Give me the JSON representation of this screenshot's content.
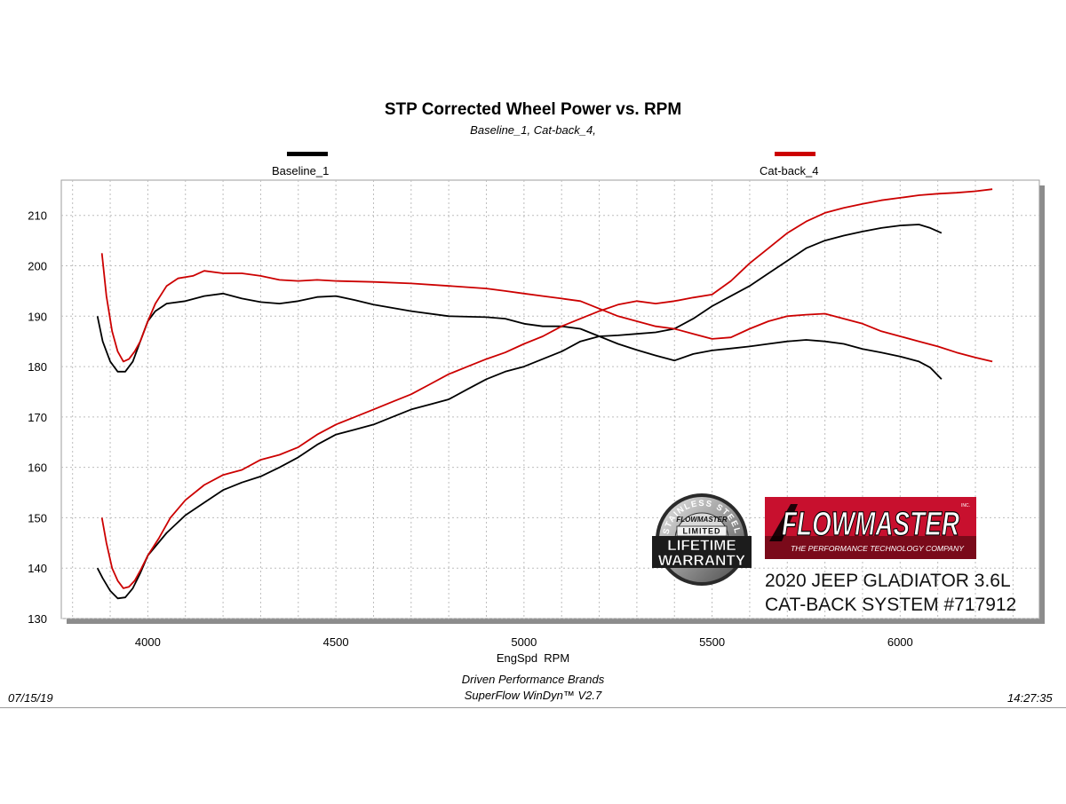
{
  "chart_data": {
    "type": "line",
    "title": "STP Corrected Wheel Power vs. RPM",
    "subtitle": "Baseline_1, Cat-back_4,",
    "xlabel": "EngSpd  RPM",
    "ylabel": "",
    "xlim": [
      3770,
      6370
    ],
    "ylim": [
      130,
      217
    ],
    "xticks": [
      4000,
      4500,
      5000,
      5500,
      6000
    ],
    "yticks": [
      130,
      140,
      150,
      160,
      170,
      180,
      190,
      200,
      210
    ],
    "grid": true,
    "legend": [
      {
        "name": "Baseline_1",
        "color": "#000000",
        "placement": "top-left"
      },
      {
        "name": "Cat-back_4",
        "color": "#cc0000",
        "placement": "top-right"
      }
    ],
    "series": [
      {
        "name": "Baseline_1",
        "metric": "upper",
        "color": "#000000",
        "points": [
          [
            3866,
            190
          ],
          [
            3880,
            185
          ],
          [
            3900,
            181
          ],
          [
            3920,
            179
          ],
          [
            3940,
            179
          ],
          [
            3960,
            181
          ],
          [
            3980,
            185
          ],
          [
            4000,
            189
          ],
          [
            4020,
            191
          ],
          [
            4050,
            192.5
          ],
          [
            4100,
            193
          ],
          [
            4150,
            194
          ],
          [
            4200,
            194.5
          ],
          [
            4250,
            193.5
          ],
          [
            4300,
            192.8
          ],
          [
            4350,
            192.5
          ],
          [
            4400,
            193
          ],
          [
            4450,
            193.8
          ],
          [
            4500,
            194
          ],
          [
            4550,
            193.2
          ],
          [
            4600,
            192.3
          ],
          [
            4700,
            191
          ],
          [
            4800,
            190
          ],
          [
            4900,
            189.8
          ],
          [
            4950,
            189.5
          ],
          [
            5000,
            188.5
          ],
          [
            5050,
            188
          ],
          [
            5100,
            188
          ],
          [
            5150,
            187.5
          ],
          [
            5200,
            186
          ],
          [
            5250,
            184.5
          ],
          [
            5300,
            183.3
          ],
          [
            5350,
            182.2
          ],
          [
            5400,
            181.2
          ],
          [
            5450,
            182.5
          ],
          [
            5500,
            183.2
          ],
          [
            5550,
            183.6
          ],
          [
            5600,
            184
          ],
          [
            5650,
            184.5
          ],
          [
            5700,
            185
          ],
          [
            5750,
            185.3
          ],
          [
            5800,
            185
          ],
          [
            5850,
            184.5
          ],
          [
            5900,
            183.5
          ],
          [
            5950,
            182.8
          ],
          [
            6000,
            182
          ],
          [
            6050,
            181
          ],
          [
            6080,
            179.8
          ],
          [
            6110,
            177.5
          ]
        ]
      },
      {
        "name": "Baseline_1",
        "metric": "lower",
        "color": "#000000",
        "points": [
          [
            3866,
            140
          ],
          [
            3880,
            138
          ],
          [
            3900,
            135.5
          ],
          [
            3920,
            134
          ],
          [
            3940,
            134.2
          ],
          [
            3960,
            136
          ],
          [
            3980,
            139
          ],
          [
            4000,
            142.5
          ],
          [
            4050,
            147
          ],
          [
            4100,
            150.5
          ],
          [
            4150,
            153
          ],
          [
            4200,
            155.5
          ],
          [
            4250,
            157
          ],
          [
            4300,
            158.2
          ],
          [
            4350,
            160
          ],
          [
            4400,
            162
          ],
          [
            4450,
            164.5
          ],
          [
            4500,
            166.5
          ],
          [
            4550,
            167.5
          ],
          [
            4600,
            168.5
          ],
          [
            4650,
            170
          ],
          [
            4700,
            171.5
          ],
          [
            4750,
            172.5
          ],
          [
            4800,
            173.5
          ],
          [
            4850,
            175.5
          ],
          [
            4900,
            177.5
          ],
          [
            4950,
            179
          ],
          [
            5000,
            180
          ],
          [
            5050,
            181.5
          ],
          [
            5100,
            183
          ],
          [
            5150,
            185
          ],
          [
            5200,
            186
          ],
          [
            5250,
            186.2
          ],
          [
            5300,
            186.5
          ],
          [
            5350,
            186.8
          ],
          [
            5400,
            187.5
          ],
          [
            5450,
            189.5
          ],
          [
            5500,
            192
          ],
          [
            5550,
            194
          ],
          [
            5600,
            196
          ],
          [
            5650,
            198.5
          ],
          [
            5700,
            201
          ],
          [
            5750,
            203.5
          ],
          [
            5800,
            205
          ],
          [
            5850,
            206
          ],
          [
            5900,
            206.8
          ],
          [
            5950,
            207.5
          ],
          [
            6000,
            208
          ],
          [
            6050,
            208.2
          ],
          [
            6080,
            207.5
          ],
          [
            6110,
            206.5
          ]
        ]
      },
      {
        "name": "Cat-back_4",
        "metric": "upper",
        "color": "#cc0000",
        "points": [
          [
            3878,
            202.5
          ],
          [
            3890,
            194
          ],
          [
            3905,
            187
          ],
          [
            3920,
            183
          ],
          [
            3935,
            181
          ],
          [
            3950,
            181.5
          ],
          [
            3965,
            183
          ],
          [
            3980,
            185
          ],
          [
            4000,
            189
          ],
          [
            4020,
            192.5
          ],
          [
            4050,
            196
          ],
          [
            4080,
            197.5
          ],
          [
            4120,
            198
          ],
          [
            4150,
            199
          ],
          [
            4200,
            198.5
          ],
          [
            4250,
            198.5
          ],
          [
            4300,
            198
          ],
          [
            4350,
            197.2
          ],
          [
            4400,
            197
          ],
          [
            4450,
            197.2
          ],
          [
            4500,
            197
          ],
          [
            4600,
            196.8
          ],
          [
            4700,
            196.5
          ],
          [
            4800,
            196
          ],
          [
            4900,
            195.5
          ],
          [
            4950,
            195
          ],
          [
            5000,
            194.5
          ],
          [
            5050,
            194
          ],
          [
            5100,
            193.5
          ],
          [
            5150,
            193
          ],
          [
            5200,
            191.5
          ],
          [
            5250,
            190
          ],
          [
            5300,
            189
          ],
          [
            5350,
            188
          ],
          [
            5400,
            187.5
          ],
          [
            5450,
            186.5
          ],
          [
            5500,
            185.5
          ],
          [
            5550,
            185.8
          ],
          [
            5600,
            187.5
          ],
          [
            5650,
            189
          ],
          [
            5700,
            190
          ],
          [
            5750,
            190.3
          ],
          [
            5800,
            190.5
          ],
          [
            5850,
            189.5
          ],
          [
            5900,
            188.5
          ],
          [
            5950,
            187
          ],
          [
            6000,
            186
          ],
          [
            6050,
            185
          ],
          [
            6100,
            184
          ],
          [
            6150,
            182.8
          ],
          [
            6200,
            181.8
          ],
          [
            6245,
            181
          ]
        ]
      },
      {
        "name": "Cat-back_4",
        "metric": "lower",
        "color": "#cc0000",
        "points": [
          [
            3878,
            150
          ],
          [
            3890,
            145
          ],
          [
            3905,
            140
          ],
          [
            3920,
            137.5
          ],
          [
            3935,
            136
          ],
          [
            3950,
            136.3
          ],
          [
            3965,
            137.5
          ],
          [
            3980,
            139.5
          ],
          [
            4000,
            142.5
          ],
          [
            4030,
            146
          ],
          [
            4060,
            150
          ],
          [
            4100,
            153.5
          ],
          [
            4150,
            156.5
          ],
          [
            4200,
            158.5
          ],
          [
            4250,
            159.5
          ],
          [
            4300,
            161.5
          ],
          [
            4350,
            162.5
          ],
          [
            4400,
            164
          ],
          [
            4450,
            166.5
          ],
          [
            4500,
            168.5
          ],
          [
            4550,
            170
          ],
          [
            4600,
            171.5
          ],
          [
            4650,
            173
          ],
          [
            4700,
            174.5
          ],
          [
            4750,
            176.5
          ],
          [
            4800,
            178.5
          ],
          [
            4850,
            180
          ],
          [
            4900,
            181.5
          ],
          [
            4950,
            182.8
          ],
          [
            5000,
            184.5
          ],
          [
            5050,
            186
          ],
          [
            5100,
            188
          ],
          [
            5150,
            189.5
          ],
          [
            5200,
            191
          ],
          [
            5250,
            192.3
          ],
          [
            5300,
            193
          ],
          [
            5350,
            192.5
          ],
          [
            5400,
            193
          ],
          [
            5450,
            193.7
          ],
          [
            5500,
            194.3
          ],
          [
            5550,
            197
          ],
          [
            5600,
            200.5
          ],
          [
            5650,
            203.5
          ],
          [
            5700,
            206.5
          ],
          [
            5750,
            208.8
          ],
          [
            5800,
            210.5
          ],
          [
            5850,
            211.5
          ],
          [
            5900,
            212.3
          ],
          [
            5950,
            213
          ],
          [
            6000,
            213.5
          ],
          [
            6050,
            214
          ],
          [
            6100,
            214.3
          ],
          [
            6150,
            214.5
          ],
          [
            6200,
            214.8
          ],
          [
            6245,
            215.2
          ]
        ]
      }
    ]
  },
  "footer": {
    "line1": "Driven Performance Brands",
    "line2": "SuperFlow WinDyn™ V2.7",
    "date": "07/15/19",
    "time": "14:27:35"
  },
  "badge": {
    "arc_text": "STAINLESS STEEL",
    "brand": "FLOWMASTER",
    "ribbon": "LIMITED",
    "line1": "LIFETIME",
    "line2": "WARRANTY"
  },
  "logo": {
    "brand": "FLOWMASTER",
    "tagline": "THE PERFORMANCE TECHNOLOGY COMPANY",
    "mark": "INC."
  },
  "caption": {
    "line1": "2020 JEEP GLADIATOR 3.6L",
    "line2": "CAT-BACK SYSTEM #717912"
  },
  "colors": {
    "baseline": "#000000",
    "catback": "#cc0000",
    "brand_red": "#c8102e",
    "grid": "#bdbdbd"
  }
}
